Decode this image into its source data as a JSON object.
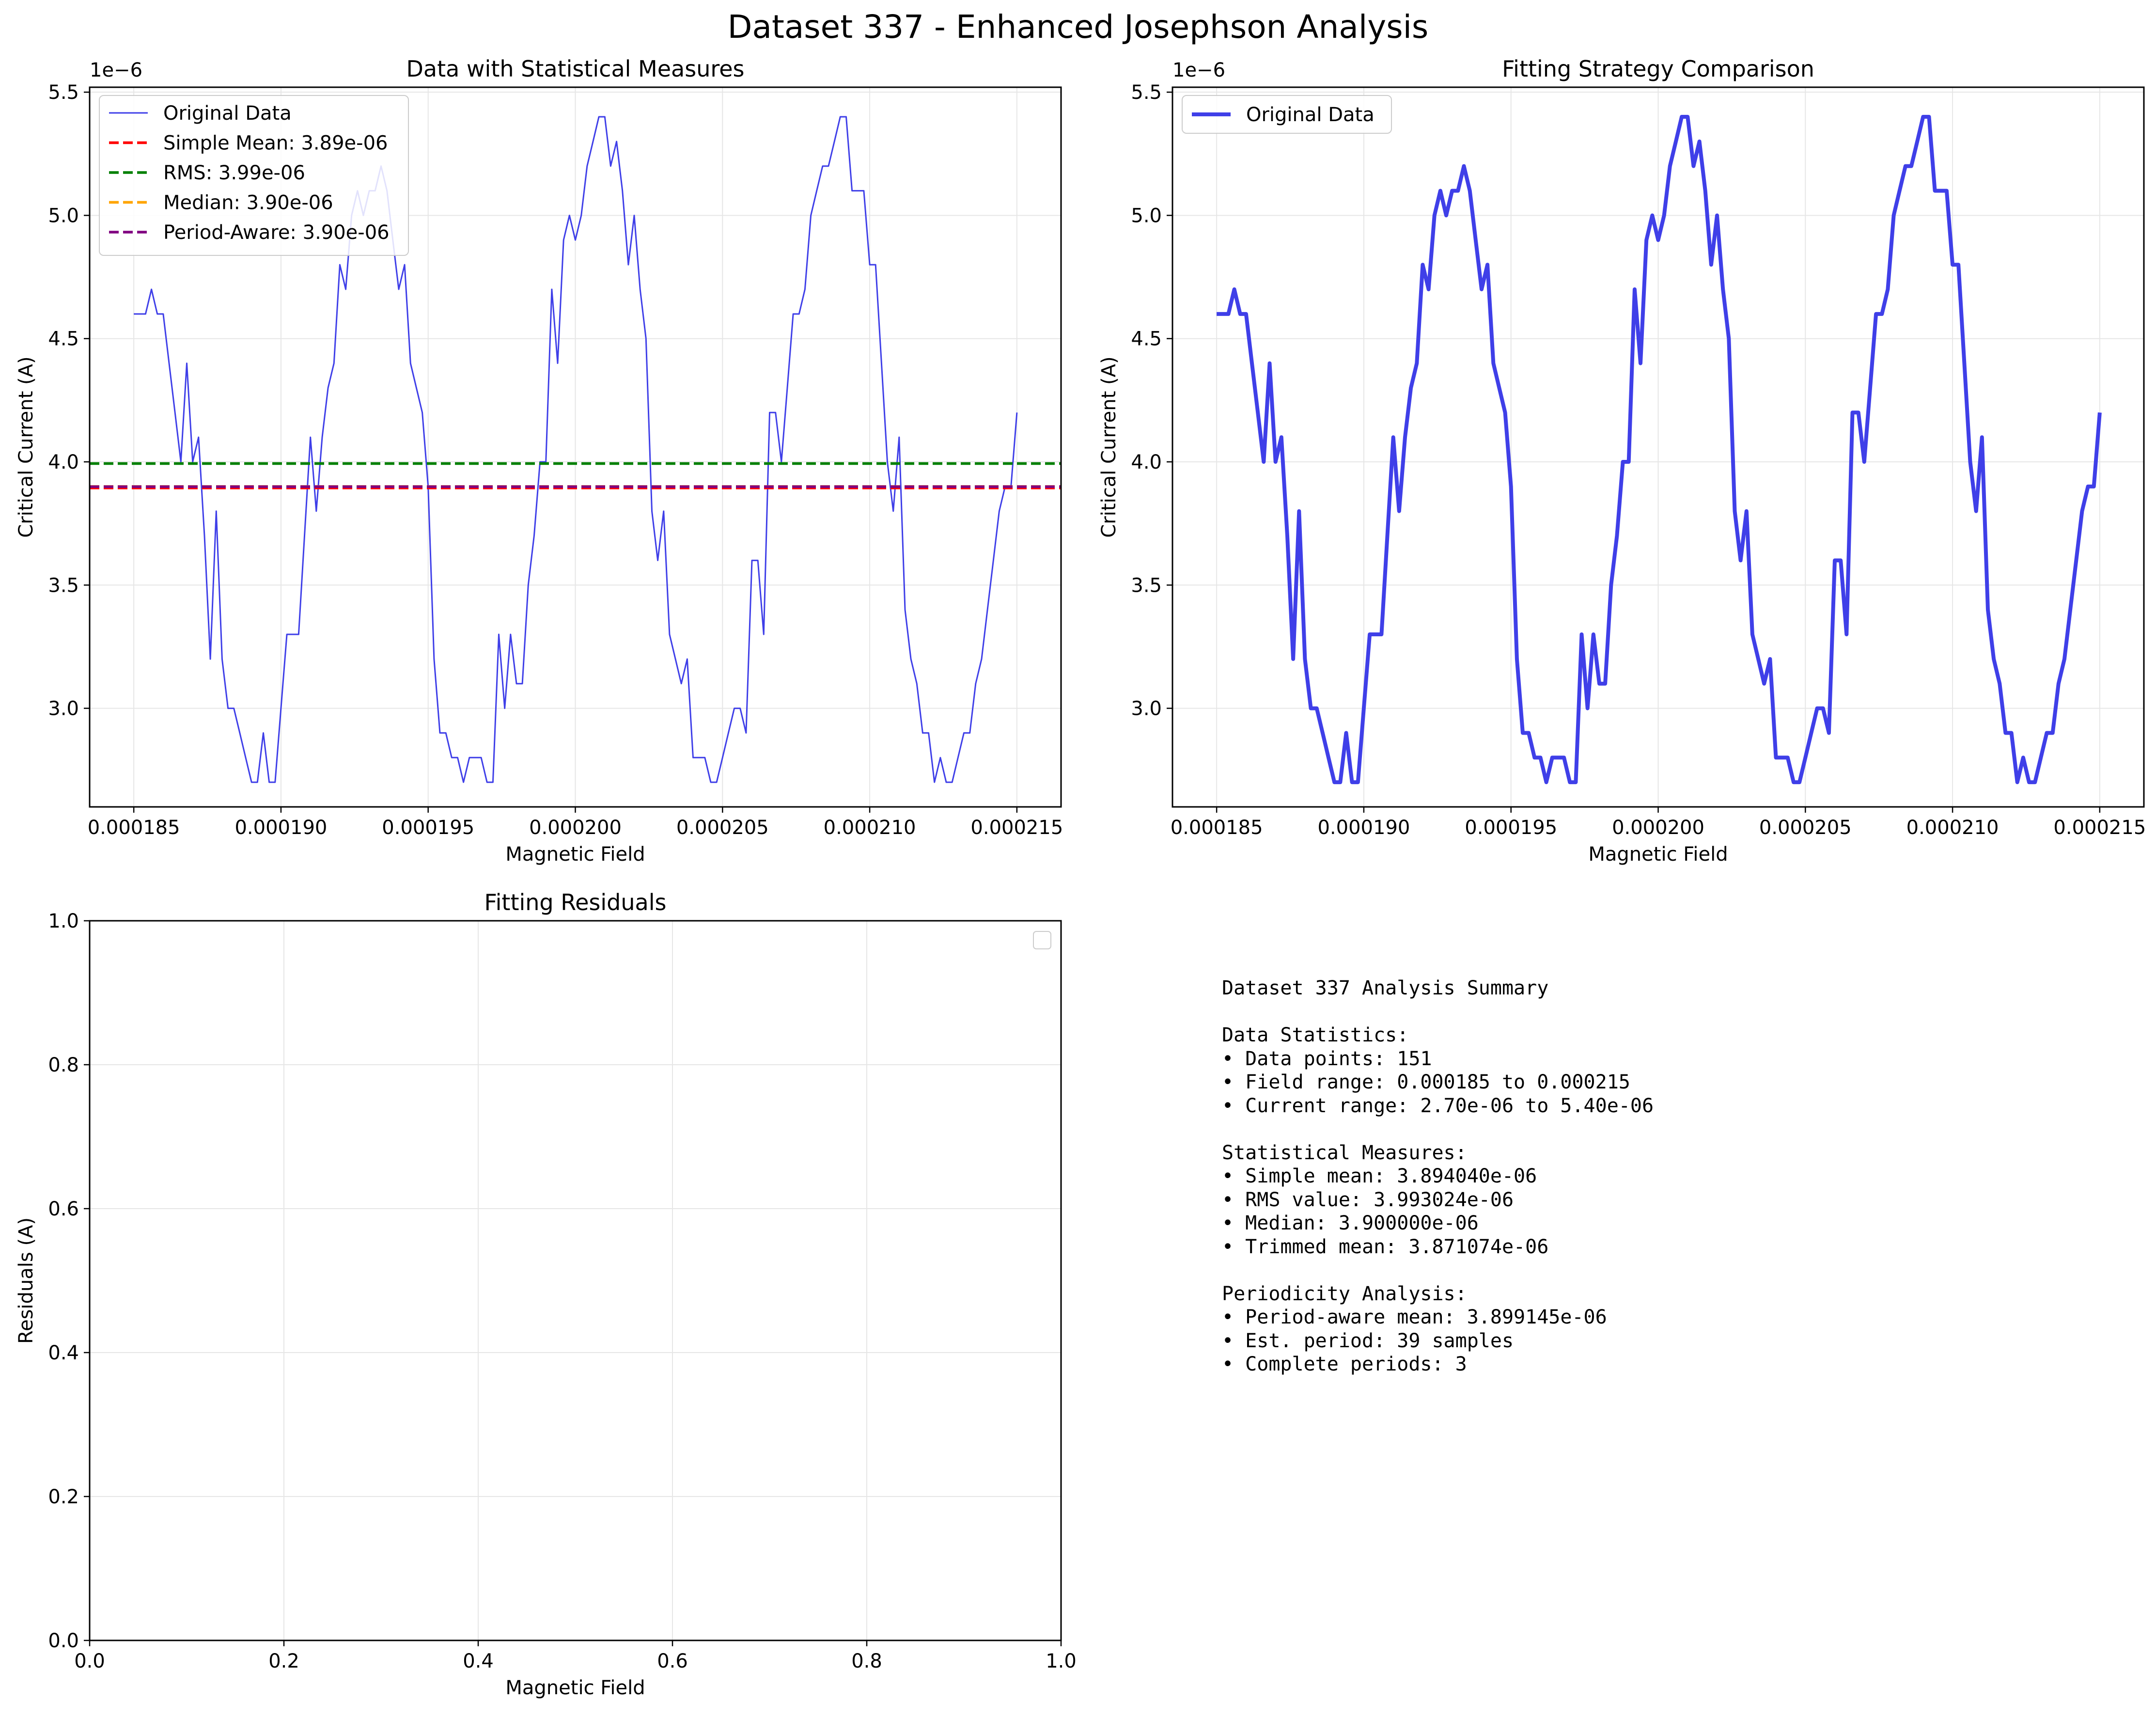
{
  "figure": {
    "suptitle": "Dataset 337 - Enhanced Josephson Analysis"
  },
  "colors": {
    "data_line": "#3f3fe8",
    "simple_mean": "#ff0000",
    "rms": "#008000",
    "median": "#ffa500",
    "period_aware": "#800080",
    "grid": "#e6e6e6"
  },
  "chart_data": [
    {
      "type": "line",
      "title": "Data with Statistical Measures",
      "xlabel": "Magnetic Field",
      "ylabel": "Critical Current (A)",
      "y_offset_label": "1e−6",
      "xlim": [
        0.0001835,
        0.0002165
      ],
      "ylim": [
        2.6,
        5.52
      ],
      "x_ticks": [
        "0.000185",
        "0.000190",
        "0.000195",
        "0.000200",
        "0.000205",
        "0.000210",
        "0.000215"
      ],
      "y_ticks": [
        "3.0",
        "3.5",
        "4.0",
        "4.5",
        "5.0",
        "5.5"
      ],
      "grid": true,
      "legend_position": "upper-left",
      "series_x_range": [
        0.000185,
        0.000215
      ],
      "series": [
        {
          "name": "Original Data",
          "y_scale": "1e-6",
          "values": [
            4.6,
            4.6,
            4.6,
            4.7,
            4.6,
            4.6,
            4.4,
            4.2,
            4.0,
            4.4,
            4.0,
            4.1,
            3.7,
            3.2,
            3.8,
            3.2,
            3.0,
            3.0,
            2.9,
            2.8,
            2.7,
            2.7,
            2.9,
            2.7,
            2.7,
            3.0,
            3.3,
            3.3,
            3.3,
            3.7,
            4.1,
            3.8,
            4.1,
            4.3,
            4.4,
            4.8,
            4.7,
            5.0,
            5.1,
            5.0,
            5.1,
            5.1,
            5.2,
            5.1,
            4.9,
            4.7,
            4.8,
            4.4,
            4.3,
            4.2,
            3.9,
            3.2,
            2.9,
            2.9,
            2.8,
            2.8,
            2.7,
            2.8,
            2.8,
            2.8,
            2.7,
            2.7,
            3.3,
            3.0,
            3.3,
            3.1,
            3.1,
            3.5,
            3.7,
            4.0,
            4.0,
            4.7,
            4.4,
            4.9,
            5.0,
            4.9,
            5.0,
            5.2,
            5.3,
            5.4,
            5.4,
            5.2,
            5.3,
            5.1,
            4.8,
            5.0,
            4.7,
            4.5,
            3.8,
            3.6,
            3.8,
            3.3,
            3.2,
            3.1,
            3.2,
            2.8,
            2.8,
            2.8,
            2.7,
            2.7,
            2.8,
            2.9,
            3.0,
            3.0,
            2.9,
            3.6,
            3.6,
            3.3,
            4.2,
            4.2,
            4.0,
            4.3,
            4.6,
            4.6,
            4.7,
            5.0,
            5.1,
            5.2,
            5.2,
            5.3,
            5.4,
            5.4,
            5.1,
            5.1,
            5.1,
            4.8,
            4.8,
            4.4,
            4.0,
            3.8,
            4.1,
            3.4,
            3.2,
            3.1,
            2.9,
            2.9,
            2.7,
            2.8,
            2.7,
            2.7,
            2.8,
            2.9,
            2.9,
            3.1,
            3.2,
            3.4,
            3.6,
            3.8,
            3.9,
            3.9,
            4.2
          ]
        }
      ],
      "hlines": [
        {
          "name": "Simple Mean: 3.89e-06",
          "value": 3.89404,
          "style": "dashed",
          "color_key": "simple_mean"
        },
        {
          "name": "RMS: 3.99e-06",
          "value": 3.993024,
          "style": "dashed",
          "color_key": "rms"
        },
        {
          "name": "Median: 3.90e-06",
          "value": 3.9,
          "style": "dashed",
          "color_key": "median"
        },
        {
          "name": "Period-Aware: 3.90e-06",
          "value": 3.899145,
          "style": "dashed",
          "color_key": "period_aware"
        }
      ]
    },
    {
      "type": "line",
      "title": "Fitting Strategy Comparison",
      "xlabel": "Magnetic Field",
      "ylabel": "Critical Current (A)",
      "y_offset_label": "1e−6",
      "xlim": [
        0.0001835,
        0.0002165
      ],
      "ylim": [
        2.6,
        5.52
      ],
      "x_ticks": [
        "0.000185",
        "0.000190",
        "0.000195",
        "0.000200",
        "0.000205",
        "0.000210",
        "0.000215"
      ],
      "y_ticks": [
        "3.0",
        "3.5",
        "4.0",
        "4.5",
        "5.0",
        "5.5"
      ],
      "grid": true,
      "legend_position": "upper-left",
      "series": [
        {
          "name": "Original Data",
          "same_as": "chart_data.0.series.0"
        }
      ]
    },
    {
      "type": "line",
      "title": "Fitting Residuals",
      "xlabel": "Magnetic Field",
      "ylabel": "Residuals (A)",
      "xlim": [
        0,
        1
      ],
      "ylim": [
        0,
        1
      ],
      "x_ticks": [
        "0.0",
        "0.2",
        "0.4",
        "0.6",
        "0.8",
        "1.0"
      ],
      "y_ticks": [
        "0.0",
        "0.2",
        "0.4",
        "0.6",
        "0.8",
        "1.0"
      ],
      "grid": true,
      "legend_position": "upper-right",
      "series": []
    }
  ],
  "summary": {
    "lines": [
      "Dataset 337 Analysis Summary",
      "",
      "Data Statistics:",
      "• Data points: 151",
      "• Field range: 0.000185 to 0.000215",
      "• Current range: 2.70e-06 to 5.40e-06",
      "",
      "Statistical Measures:",
      "• Simple mean: 3.894040e-06",
      "• RMS value: 3.993024e-06",
      "• Median: 3.900000e-06",
      "• Trimmed mean: 3.871074e-06",
      "",
      "Periodicity Analysis:",
      "• Period-aware mean: 3.899145e-06",
      "• Est. period: 39 samples",
      "• Complete periods: 3"
    ]
  }
}
